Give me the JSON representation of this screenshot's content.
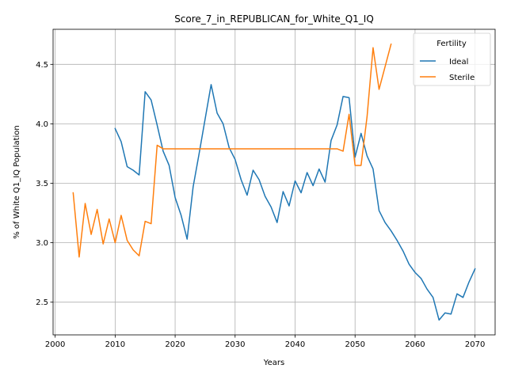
{
  "chart_data": {
    "type": "line",
    "title": "Score_7_in_REPUBLICAN_for_White_Q1_IQ",
    "xlabel": "Years",
    "ylabel": "% of White Q1_IQ Population",
    "xlim": [
      1999.65,
      2073.35
    ],
    "ylim": [
      2.225,
      4.795
    ],
    "xticks": [
      2000,
      2010,
      2020,
      2030,
      2040,
      2050,
      2060,
      2070
    ],
    "yticks": [
      2.5,
      3.0,
      3.5,
      4.0,
      4.5
    ],
    "ytick_labels": [
      "2.5",
      "3.0",
      "3.5",
      "4.0",
      "4.5"
    ],
    "grid": true,
    "legend": {
      "title": "Fertility",
      "placement": "top-right"
    },
    "series": [
      {
        "name": "Ideal",
        "color": "#1f77b4",
        "x": [
          2010,
          2011,
          2012,
          2013,
          2014,
          2015,
          2016,
          2017,
          2018,
          2019,
          2020,
          2021,
          2022,
          2023,
          2024,
          2025,
          2026,
          2027,
          2028,
          2029,
          2030,
          2031,
          2032,
          2033,
          2034,
          2035,
          2036,
          2037,
          2038,
          2039,
          2040,
          2041,
          2042,
          2043,
          2044,
          2045,
          2046,
          2047,
          2048,
          2049,
          2050,
          2051,
          2052,
          2053,
          2054,
          2055,
          2056,
          2057,
          2058,
          2059,
          2060,
          2061,
          2062,
          2063,
          2064,
          2065,
          2066,
          2067,
          2068,
          2069,
          2070
        ],
        "values": [
          3.96,
          3.85,
          3.64,
          3.61,
          3.57,
          4.27,
          4.2,
          3.99,
          3.77,
          3.65,
          3.38,
          3.23,
          3.03,
          3.47,
          3.75,
          4.04,
          4.33,
          4.09,
          4.0,
          3.8,
          3.7,
          3.53,
          3.4,
          3.61,
          3.53,
          3.39,
          3.3,
          3.17,
          3.43,
          3.31,
          3.52,
          3.42,
          3.59,
          3.48,
          3.62,
          3.51,
          3.86,
          3.99,
          4.23,
          4.22,
          3.72,
          3.92,
          3.73,
          3.62,
          3.27,
          3.17,
          3.1,
          3.02,
          2.93,
          2.82,
          2.75,
          2.7,
          2.61,
          2.54,
          2.35,
          2.41,
          2.4,
          2.57,
          2.54,
          2.67,
          2.78
        ]
      },
      {
        "name": "Sterile",
        "color": "#ff7f0e",
        "x": [
          2003,
          2004,
          2005,
          2006,
          2007,
          2008,
          2009,
          2010,
          2011,
          2012,
          2013,
          2014,
          2015,
          2016,
          2017,
          2018,
          2019,
          2020,
          2021,
          2022,
          2023,
          2024,
          2025,
          2026,
          2027,
          2028,
          2029,
          2030,
          2031,
          2032,
          2033,
          2034,
          2035,
          2036,
          2037,
          2038,
          2039,
          2040,
          2041,
          2042,
          2043,
          2044,
          2045,
          2046,
          2047,
          2048,
          2049,
          2050,
          2051,
          2052,
          2053,
          2054,
          2055,
          2056
        ],
        "values": [
          3.42,
          2.88,
          3.33,
          3.07,
          3.28,
          2.99,
          3.2,
          3.0,
          3.23,
          3.02,
          2.94,
          2.89,
          3.18,
          3.16,
          3.82,
          3.79,
          3.79,
          3.79,
          3.79,
          3.79,
          3.79,
          3.79,
          3.79,
          3.79,
          3.79,
          3.79,
          3.79,
          3.79,
          3.79,
          3.79,
          3.79,
          3.79,
          3.79,
          3.79,
          3.79,
          3.79,
          3.79,
          3.79,
          3.79,
          3.79,
          3.79,
          3.79,
          3.79,
          3.79,
          3.79,
          3.77,
          4.08,
          3.65,
          3.65,
          4.06,
          4.64,
          4.29,
          4.48,
          4.67
        ]
      }
    ]
  }
}
